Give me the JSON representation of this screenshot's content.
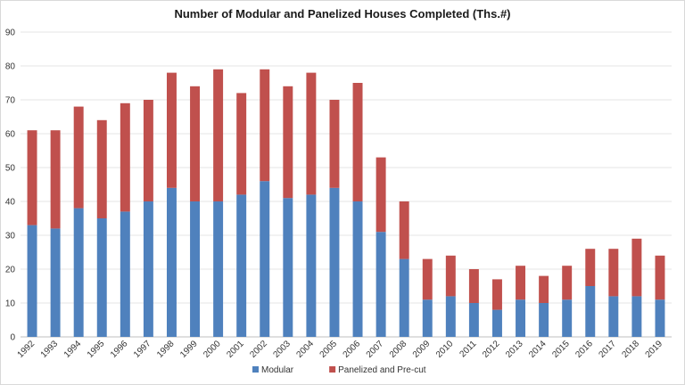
{
  "chart_data": {
    "type": "bar",
    "stacked": true,
    "title": "Number of Modular and Panelized Houses Completed (Ths.#)",
    "xlabel": "",
    "ylabel": "",
    "ylim": [
      0,
      90
    ],
    "yticks": [
      0,
      10,
      20,
      30,
      40,
      50,
      60,
      70,
      80,
      90
    ],
    "grid": true,
    "legend_position": "bottom",
    "categories": [
      "1992",
      "1993",
      "1994",
      "1995",
      "1996",
      "1997",
      "1998",
      "1999",
      "2000",
      "2001",
      "2002",
      "2003",
      "2004",
      "2005",
      "2006",
      "2007",
      "2008",
      "2009",
      "2010",
      "2011",
      "2012",
      "2013",
      "2014",
      "2015",
      "2016",
      "2017",
      "2018",
      "2019"
    ],
    "series": [
      {
        "name": "Modular",
        "color": "#4f81bd",
        "values": [
          33,
          32,
          38,
          35,
          37,
          40,
          44,
          40,
          40,
          42,
          46,
          41,
          42,
          44,
          40,
          31,
          23,
          11,
          12,
          10,
          8,
          11,
          10,
          11,
          15,
          12,
          12,
          11
        ]
      },
      {
        "name": "Panelized and Pre-cut",
        "color": "#c0504d",
        "values": [
          28,
          29,
          30,
          29,
          32,
          30,
          34,
          34,
          39,
          30,
          33,
          33,
          36,
          26,
          35,
          22,
          17,
          12,
          12,
          10,
          9,
          10,
          8,
          10,
          11,
          14,
          17,
          13
        ]
      }
    ]
  }
}
